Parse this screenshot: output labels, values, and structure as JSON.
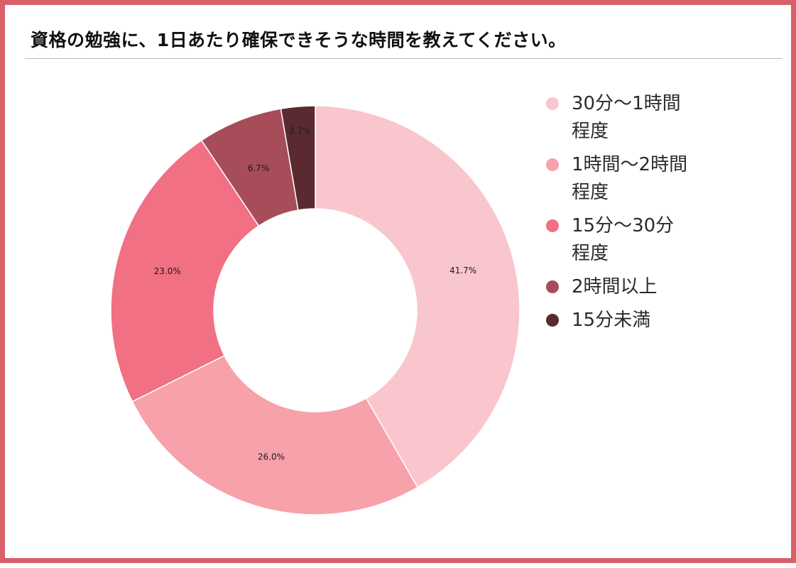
{
  "title": "資格の勉強に、1日あたり確保できそうな時間を教えてください。",
  "chart_data": {
    "type": "pie",
    "variant": "donut",
    "title": "資格の勉強に、1日あたり確保できそうな時間を教えてください。",
    "legend_position": "right",
    "categories": [
      "30分〜1時間程度",
      "1時間〜2時間程度",
      "15分〜30分程度",
      "2時間以上",
      "15分未満"
    ],
    "values": [
      41.7,
      26.0,
      23.0,
      6.7,
      2.7
    ],
    "value_labels": [
      "41.7%",
      "26.0%",
      "23.0%",
      "6.7%",
      "2.7%"
    ],
    "colors": [
      "#f9c6cd",
      "#f7a1ab",
      "#f27083",
      "#a64d59",
      "#5a2a30"
    ],
    "unit": "%"
  }
}
